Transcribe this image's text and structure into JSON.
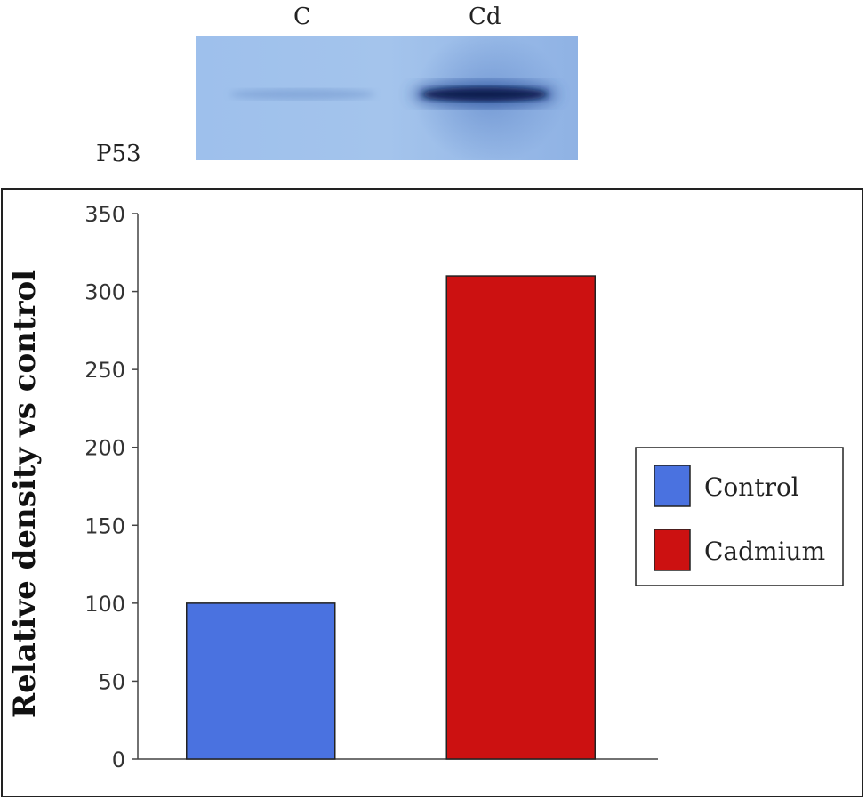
{
  "blot": {
    "lanes": [
      "C",
      "Cd"
    ],
    "protein_label": "P53"
  },
  "chart_data": {
    "type": "bar",
    "categories": [
      "Control",
      "Cadmium"
    ],
    "values": [
      100,
      310
    ],
    "colors": [
      "#4a72e0",
      "#cc1111"
    ],
    "title": "",
    "xlabel": "",
    "ylabel": "Relative density vs  control",
    "ylim": [
      0,
      350
    ],
    "yticks": [
      0,
      50,
      100,
      150,
      200,
      250,
      300,
      350
    ],
    "grid": false,
    "legend": {
      "position": "right",
      "entries": [
        "Control",
        "Cadmium"
      ]
    }
  }
}
